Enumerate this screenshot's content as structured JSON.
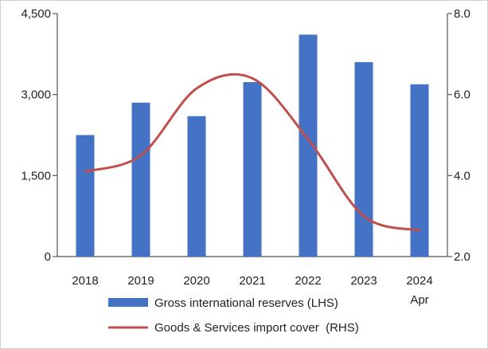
{
  "chart_data": {
    "type": "bar+line",
    "categories": [
      "2018",
      "2019",
      "2020",
      "2021",
      "2022",
      "2023",
      "2024"
    ],
    "category_sublabels": [
      "",
      "",
      "",
      "",
      "",
      "",
      "Apr"
    ],
    "series": [
      {
        "name": "Gross international reserves (LHS)",
        "type": "bar",
        "axis": "left",
        "color": "#4472C4",
        "values": [
          2250,
          2850,
          2600,
          3230,
          4110,
          3600,
          3190
        ]
      },
      {
        "name": "Goods & Services import cover  (RHS)",
        "type": "line",
        "axis": "right",
        "color": "#C0504D",
        "values": [
          4.1,
          4.5,
          6.15,
          6.4,
          4.9,
          3.0,
          2.65
        ]
      }
    ],
    "left_axis": {
      "ylim": [
        0,
        4500
      ],
      "ticks": [
        0,
        1500,
        3000,
        4500
      ],
      "tick_labels": [
        "0",
        "1,500",
        "3,000",
        "4,500"
      ]
    },
    "right_axis": {
      "ylim": [
        2.0,
        8.0
      ],
      "ticks": [
        2.0,
        4.0,
        6.0,
        8.0
      ],
      "tick_labels": [
        "2.0",
        "4.0",
        "6.0",
        "8.0"
      ]
    },
    "grid": false,
    "legend_position": "bottom"
  }
}
